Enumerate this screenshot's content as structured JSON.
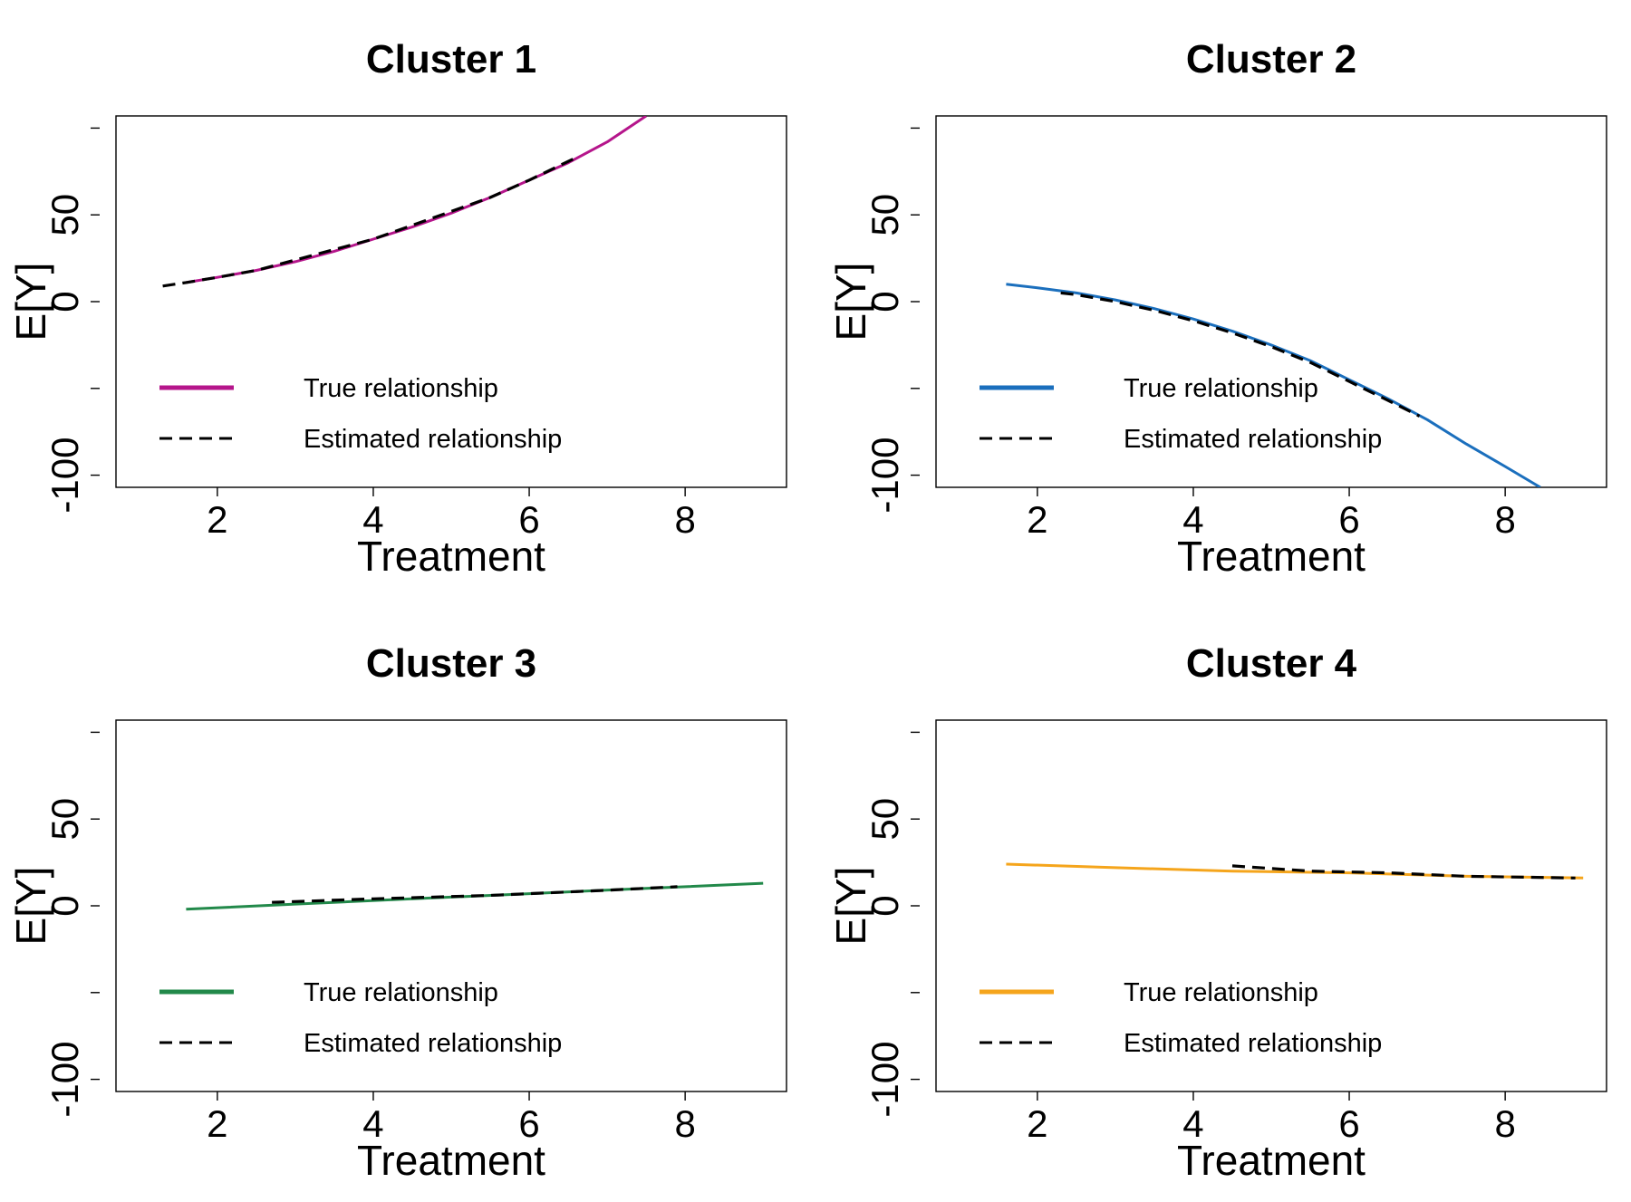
{
  "chart_data": [
    {
      "type": "line",
      "title": "Cluster 1",
      "xlabel": "Treatment",
      "ylabel": "E[Y]",
      "xlim": [
        0.7,
        9.3
      ],
      "ylim": [
        -107,
        107
      ],
      "xticks": [
        "2",
        "4",
        "6",
        "8"
      ],
      "yticks": [
        "-100",
        "-50",
        "0",
        "50",
        "100"
      ],
      "yticks_labeled": [
        "-100",
        "0",
        "50"
      ],
      "grid": false,
      "legend_position": "bottom-left",
      "series": [
        {
          "name": "True relationship",
          "style": "solid",
          "color": "#b5158b",
          "x": [
            1.6,
            2.0,
            2.5,
            3.0,
            3.5,
            4.0,
            4.5,
            5.0,
            5.5,
            6.0,
            6.5,
            7.0,
            7.5
          ],
          "y": [
            11,
            14,
            18,
            23,
            29,
            36,
            43,
            51,
            60,
            70,
            80,
            92,
            107
          ]
        },
        {
          "name": "Estimated relationship",
          "style": "dashed",
          "color": "#000000",
          "x": [
            1.3,
            1.6,
            2.0,
            2.5,
            3.0,
            3.5,
            4.0,
            4.5,
            5.0,
            5.5,
            6.0,
            6.6
          ],
          "y": [
            9,
            11,
            14,
            18,
            24,
            30,
            36,
            44,
            52,
            60,
            70,
            83
          ]
        }
      ]
    },
    {
      "type": "line",
      "title": "Cluster 2",
      "xlabel": "Treatment",
      "ylabel": "E[Y]",
      "xlim": [
        0.7,
        9.3
      ],
      "ylim": [
        -107,
        107
      ],
      "xticks": [
        "2",
        "4",
        "6",
        "8"
      ],
      "yticks": [
        "-100",
        "-50",
        "0",
        "50",
        "100"
      ],
      "yticks_labeled": [
        "-100",
        "0",
        "50"
      ],
      "grid": false,
      "legend_position": "bottom-left",
      "series": [
        {
          "name": "True relationship",
          "style": "solid",
          "color": "#1b6fbd",
          "x": [
            1.6,
            2.0,
            2.5,
            3.0,
            3.5,
            4.0,
            4.5,
            5.0,
            5.5,
            6.0,
            6.5,
            7.0,
            7.5,
            8.0,
            8.45
          ],
          "y": [
            10,
            8,
            5,
            1,
            -4,
            -10,
            -17,
            -25,
            -34,
            -45,
            -56,
            -68,
            -82,
            -95,
            -107
          ]
        },
        {
          "name": "Estimated relationship",
          "style": "dashed",
          "color": "#000000",
          "x": [
            2.3,
            2.5,
            3.0,
            3.5,
            4.0,
            4.5,
            5.0,
            5.5,
            6.0,
            6.5,
            6.9
          ],
          "y": [
            5,
            4,
            0,
            -5,
            -11,
            -18,
            -26,
            -35,
            -46,
            -57,
            -66
          ]
        }
      ]
    },
    {
      "type": "line",
      "title": "Cluster 3",
      "xlabel": "Treatment",
      "ylabel": "E[Y]",
      "xlim": [
        0.7,
        9.3
      ],
      "ylim": [
        -107,
        107
      ],
      "xticks": [
        "2",
        "4",
        "6",
        "8"
      ],
      "yticks": [
        "-100",
        "-50",
        "0",
        "50",
        "100"
      ],
      "yticks_labeled": [
        "-100",
        "0",
        "50"
      ],
      "grid": false,
      "legend_position": "bottom-left",
      "series": [
        {
          "name": "True relationship",
          "style": "solid",
          "color": "#22894a",
          "x": [
            1.6,
            3.0,
            4.5,
            6.0,
            7.5,
            9.0
          ],
          "y": [
            -2,
            1,
            4,
            7,
            10,
            13
          ]
        },
        {
          "name": "Estimated relationship",
          "style": "dashed",
          "color": "#000000",
          "x": [
            2.7,
            4.0,
            5.5,
            7.0,
            7.9
          ],
          "y": [
            2,
            4,
            6,
            9,
            11
          ]
        }
      ]
    },
    {
      "type": "line",
      "title": "Cluster 4",
      "xlabel": "Treatment",
      "ylabel": "E[Y]",
      "xlim": [
        0.7,
        9.3
      ],
      "ylim": [
        -107,
        107
      ],
      "xticks": [
        "2",
        "4",
        "6",
        "8"
      ],
      "yticks": [
        "-100",
        "-50",
        "0",
        "50",
        "100"
      ],
      "yticks_labeled": [
        "-100",
        "0",
        "50"
      ],
      "grid": false,
      "legend_position": "bottom-left",
      "series": [
        {
          "name": "True relationship",
          "style": "solid",
          "color": "#f5a51c",
          "x": [
            1.6,
            3.0,
            4.5,
            6.0,
            7.5,
            9.0
          ],
          "y": [
            24,
            22,
            20,
            19,
            17,
            16
          ]
        },
        {
          "name": "Estimated relationship",
          "style": "dashed",
          "color": "#000000",
          "x": [
            4.5,
            5.5,
            6.5,
            7.5,
            8.9
          ],
          "y": [
            23,
            20,
            19,
            17,
            16
          ]
        }
      ]
    }
  ]
}
